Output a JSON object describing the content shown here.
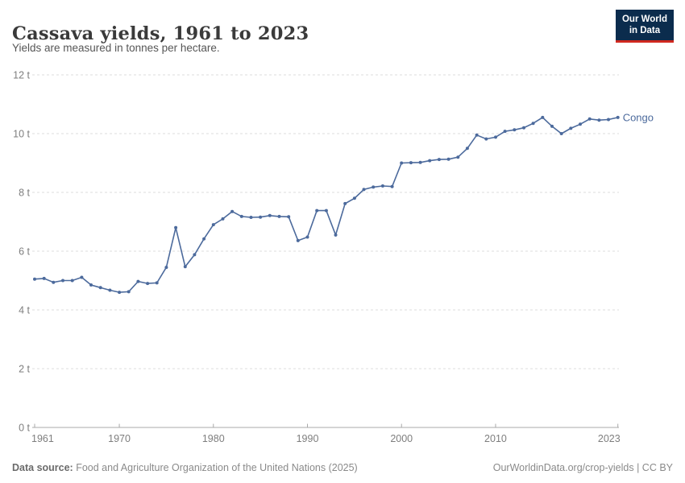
{
  "header": {
    "title": "Cassava yields, 1961 to 2023",
    "subtitle": "Yields are measured in tonnes per hectare.",
    "logo": {
      "line1": "Our World",
      "line2": "in Data",
      "bg_color": "#0b2c4d",
      "accent_color": "#d0281f"
    }
  },
  "chart_data": {
    "type": "line",
    "title": "Cassava yields, 1961 to 2023",
    "ylabel": "tonnes per hectare",
    "xlabel": "",
    "xlim": [
      1961,
      2023
    ],
    "ylim": [
      0,
      12
    ],
    "grid": "horizontal-dashed",
    "legend_position": "end-of-line-label",
    "x_ticks": [
      1961,
      1970,
      1980,
      1990,
      2000,
      2010,
      2023
    ],
    "y_ticks": [
      {
        "value": 0,
        "label": "0 t"
      },
      {
        "value": 2,
        "label": "2 t"
      },
      {
        "value": 4,
        "label": "4 t"
      },
      {
        "value": 6,
        "label": "6 t"
      },
      {
        "value": 8,
        "label": "8 t"
      },
      {
        "value": 10,
        "label": "10 t"
      },
      {
        "value": 12,
        "label": "12 t"
      }
    ],
    "series": [
      {
        "name": "Congo",
        "color": "#4C6A9C",
        "points": [
          [
            1961,
            5.05
          ],
          [
            1962,
            5.07
          ],
          [
            1963,
            4.94
          ],
          [
            1964,
            5.0
          ],
          [
            1965,
            5.0
          ],
          [
            1966,
            5.11
          ],
          [
            1967,
            4.85
          ],
          [
            1968,
            4.76
          ],
          [
            1969,
            4.67
          ],
          [
            1970,
            4.6
          ],
          [
            1971,
            4.62
          ],
          [
            1972,
            4.97
          ],
          [
            1973,
            4.9
          ],
          [
            1974,
            4.92
          ],
          [
            1975,
            5.45
          ],
          [
            1976,
            6.8
          ],
          [
            1977,
            5.47
          ],
          [
            1978,
            5.88
          ],
          [
            1979,
            6.42
          ],
          [
            1980,
            6.9
          ],
          [
            1981,
            7.1
          ],
          [
            1982,
            7.35
          ],
          [
            1983,
            7.18
          ],
          [
            1984,
            7.15
          ],
          [
            1985,
            7.16
          ],
          [
            1986,
            7.21
          ],
          [
            1987,
            7.18
          ],
          [
            1988,
            7.17
          ],
          [
            1989,
            6.36
          ],
          [
            1990,
            6.48
          ],
          [
            1991,
            7.38
          ],
          [
            1992,
            7.38
          ],
          [
            1993,
            6.55
          ],
          [
            1994,
            7.62
          ],
          [
            1995,
            7.8
          ],
          [
            1996,
            8.1
          ],
          [
            1997,
            8.18
          ],
          [
            1998,
            8.22
          ],
          [
            1999,
            8.2
          ],
          [
            2000,
            9.0
          ],
          [
            2001,
            9.01
          ],
          [
            2002,
            9.02
          ],
          [
            2003,
            9.08
          ],
          [
            2004,
            9.12
          ],
          [
            2005,
            9.13
          ],
          [
            2006,
            9.2
          ],
          [
            2007,
            9.5
          ],
          [
            2008,
            9.95
          ],
          [
            2009,
            9.82
          ],
          [
            2010,
            9.88
          ],
          [
            2011,
            10.08
          ],
          [
            2012,
            10.13
          ],
          [
            2013,
            10.2
          ],
          [
            2014,
            10.35
          ],
          [
            2015,
            10.55
          ],
          [
            2016,
            10.25
          ],
          [
            2017,
            10.0
          ],
          [
            2018,
            10.18
          ],
          [
            2019,
            10.32
          ],
          [
            2020,
            10.5
          ],
          [
            2021,
            10.46
          ],
          [
            2022,
            10.48
          ],
          [
            2023,
            10.55
          ]
        ]
      }
    ]
  },
  "footer": {
    "datasource_label": "Data source:",
    "datasource_text": " Food and Agriculture Organization of the United Nations (2025)",
    "credit_link": "OurWorldinData.org/crop-yields",
    "credit_sep": " | ",
    "credit_license": "CC BY"
  }
}
